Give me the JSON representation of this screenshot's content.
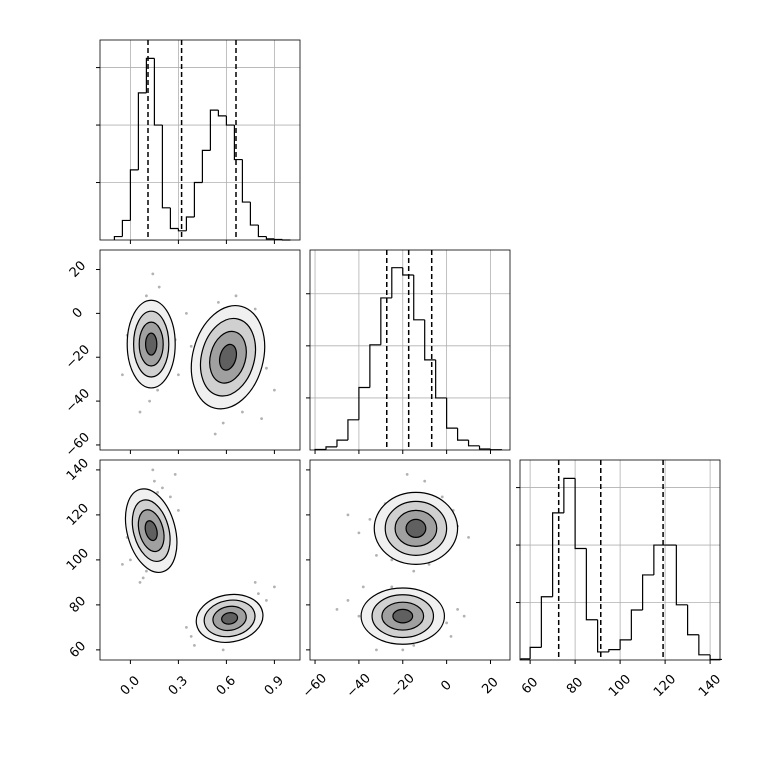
{
  "chart_data": {
    "type": "corner",
    "params": [
      {
        "lim": [
          -0.19,
          1.06
        ],
        "ticks": [
          {
            "value": 0,
            "label": "0.0"
          },
          0.3,
          0.6,
          0.9
        ]
      },
      {
        "lim": [
          -62.3,
          28.9
        ],
        "ticks": [
          {
            "value": -60,
            "label": "−60"
          },
          {
            "value": -40,
            "label": "−40"
          },
          {
            "value": -20,
            "label": "−20"
          },
          0,
          20
        ]
      },
      {
        "lim": [
          55.5,
          144.4
        ],
        "ticks": [
          60,
          80,
          100,
          120,
          140
        ]
      }
    ],
    "histograms": [
      {
        "bins": [
          -0.1,
          -0.05,
          0,
          0.05,
          0.1,
          0.15,
          0.2,
          0.25,
          0.3,
          0.35,
          0.4,
          0.45,
          0.5,
          0.55,
          0.6,
          0.65,
          0.7,
          0.75,
          0.8,
          0.85,
          0.9,
          0.95,
          1.0
        ],
        "counts": [
          30,
          170,
          610,
          1280,
          1580,
          1000,
          280,
          100,
          80,
          200,
          500,
          780,
          1130,
          1080,
          1000,
          700,
          330,
          130,
          30,
          10,
          5,
          0
        ],
        "ylim": [
          0,
          1740
        ],
        "yticks": [
          500,
          1000,
          1500
        ],
        "quantiles": [
          0.11,
          0.32,
          0.66
        ]
      },
      {
        "bins": [
          -60,
          -55,
          -50,
          -45,
          -40,
          -35,
          -30,
          -25,
          -20,
          -15,
          -10,
          -5,
          0,
          5,
          10,
          15,
          20,
          25
        ],
        "counts": [
          5,
          30,
          95,
          290,
          600,
          1010,
          1460,
          1750,
          1680,
          1250,
          865,
          500,
          210,
          95,
          40,
          10,
          3
        ],
        "ylim": [
          0,
          1920
        ],
        "yticks": [
          500,
          1000,
          1500
        ],
        "quantiles": [
          -27.3,
          -17.3,
          -6.8
        ]
      },
      {
        "bins": [
          56,
          60,
          65,
          70,
          75,
          80,
          85,
          90,
          95,
          100,
          105,
          110,
          115,
          120,
          125,
          130,
          135,
          140,
          145
        ],
        "counts": [
          10,
          110,
          550,
          1280,
          1580,
          970,
          350,
          70,
          90,
          175,
          435,
          740,
          1000,
          1000,
          480,
          220,
          45,
          5
        ],
        "ylim": [
          0,
          1740
        ],
        "yticks": [
          500,
          1000,
          1500
        ],
        "quantiles": [
          72.7,
          91.4,
          119.1
        ]
      }
    ],
    "hist_color": "#000000",
    "point_color": "#555555",
    "grid_color": "#b0b0b0",
    "contour_fills": [
      "#f0f0f0",
      "#d0d0d0",
      "#a0a0a0",
      "#606060"
    ],
    "pairs": [
      {
        "x": [
          0.05,
          0.2,
          0.1,
          0.17,
          0.0,
          0.25,
          0.08,
          0.15,
          -0.02,
          0.22,
          0.12,
          0.28,
          0.03,
          0.18,
          -0.05,
          0.1,
          0.2,
          0.06,
          0.14,
          0.3,
          0.45,
          0.75,
          0.55,
          0.8,
          0.4,
          0.7,
          0.62,
          0.5,
          0.85,
          0.58,
          0.38,
          0.9,
          0.66,
          0.48,
          0.72,
          0.6,
          0.35,
          0.82,
          0.53,
          0.78
        ],
        "y": [
          -2,
          -25,
          8,
          -35,
          -20,
          -5,
          -30,
          5,
          -10,
          -18,
          -40,
          -12,
          0,
          12,
          -28,
          -22,
          0,
          -45,
          18,
          -28,
          -10,
          -30,
          5,
          -10,
          -30,
          -45,
          -5,
          -40,
          -25,
          -50,
          -15,
          -35,
          8,
          -25,
          -15,
          -38,
          0,
          -48,
          -55,
          2
        ],
        "contours": [
          [
            {
              "x": 0.13,
              "y": -14,
              "rx": 0.15,
              "ry": 20,
              "angle": 0
            },
            {
              "x": 0.13,
              "y": -14,
              "rx": 0.11,
              "ry": 15,
              "angle": 0
            },
            {
              "x": 0.13,
              "y": -14,
              "rx": 0.075,
              "ry": 10,
              "angle": 0
            },
            {
              "x": 0.13,
              "y": -14,
              "rx": 0.035,
              "ry": 5,
              "angle": 0
            }
          ],
          [
            {
              "x": 0.61,
              "y": -20,
              "rx": 0.22,
              "ry": 24,
              "angle": 15
            },
            {
              "x": 0.61,
              "y": -20,
              "rx": 0.165,
              "ry": 18,
              "angle": 15
            },
            {
              "x": 0.61,
              "y": -20,
              "rx": 0.11,
              "ry": 12,
              "angle": 15
            },
            {
              "x": 0.61,
              "y": -20,
              "rx": 0.05,
              "ry": 6,
              "angle": 15
            }
          ]
        ]
      },
      {
        "x": [
          0.05,
          0.2,
          0.1,
          0.17,
          0.0,
          0.25,
          0.08,
          0.15,
          -0.02,
          0.22,
          0.12,
          0.28,
          0.03,
          0.18,
          -0.05,
          0.1,
          0.2,
          0.06,
          0.14,
          0.3,
          0.45,
          0.75,
          0.55,
          0.8,
          0.4,
          0.7,
          0.62,
          0.5,
          0.85,
          0.58,
          0.38,
          0.9,
          0.66,
          0.48,
          0.72,
          0.6,
          0.35,
          0.82,
          0.53,
          0.78
        ],
        "y": [
          105,
          125,
          95,
          130,
          100,
          128,
          92,
          135,
          110,
          120,
          100,
          138,
          115,
          108,
          98,
          125,
          132,
          90,
          140,
          122,
          68,
          80,
          65,
          85,
          62,
          78,
          70,
          72,
          82,
          60,
          66,
          88,
          83,
          75,
          70,
          64,
          70,
          76,
          80,
          90
        ],
        "contours": [
          [
            {
              "x": 0.13,
              "y": 113,
              "rx": 0.15,
              "ry": 19,
              "angle": -15
            },
            {
              "x": 0.13,
              "y": 113,
              "rx": 0.11,
              "ry": 14,
              "angle": -15
            },
            {
              "x": 0.13,
              "y": 113,
              "rx": 0.075,
              "ry": 9.5,
              "angle": -15
            },
            {
              "x": 0.13,
              "y": 113,
              "rx": 0.035,
              "ry": 4.5,
              "angle": -15
            }
          ],
          [
            {
              "x": 0.62,
              "y": 74,
              "rx": 0.21,
              "ry": 10.5,
              "angle": -10
            },
            {
              "x": 0.62,
              "y": 74,
              "rx": 0.16,
              "ry": 8,
              "angle": -10
            },
            {
              "x": 0.62,
              "y": 74,
              "rx": 0.105,
              "ry": 5.3,
              "angle": -10
            },
            {
              "x": 0.62,
              "y": 74,
              "rx": 0.05,
              "ry": 2.5,
              "angle": -10
            }
          ]
        ]
      },
      {
        "x": [
          -30,
          -5,
          -20,
          0,
          -35,
          -10,
          -25,
          5,
          -15,
          -40,
          -2,
          -28,
          10,
          -18,
          -8,
          -32,
          3,
          -22,
          -12,
          -45,
          -40,
          -5,
          -30,
          0,
          -45,
          -15,
          -25,
          5,
          -35,
          -10,
          -50,
          -20,
          2,
          -28,
          -8,
          -38,
          8,
          -18,
          -32,
          -12
        ],
        "y": [
          110,
          120,
          128,
          105,
          118,
          135,
          100,
          115,
          95,
          112,
          128,
          125,
          110,
          138,
          98,
          102,
          122,
          118,
          108,
          120,
          75,
          80,
          65,
          72,
          82,
          62,
          88,
          78,
          70,
          85,
          78,
          60,
          66,
          80,
          70,
          88,
          75,
          82,
          60,
          74
        ],
        "contours": [
          [
            {
              "x": -14,
              "y": 114,
              "rx": 19,
              "ry": 16,
              "angle": 0
            },
            {
              "x": -14,
              "y": 114,
              "rx": 14,
              "ry": 12,
              "angle": 0
            },
            {
              "x": -14,
              "y": 114,
              "rx": 9.5,
              "ry": 8,
              "angle": 0
            },
            {
              "x": -14,
              "y": 114,
              "rx": 4.5,
              "ry": 4,
              "angle": 0
            }
          ],
          [
            {
              "x": -20,
              "y": 75,
              "rx": 19,
              "ry": 12.5,
              "angle": 0
            },
            {
              "x": -20,
              "y": 75,
              "rx": 14,
              "ry": 9.5,
              "angle": 0
            },
            {
              "x": -20,
              "y": 75,
              "rx": 9.5,
              "ry": 6.2,
              "angle": 0
            },
            {
              "x": -20,
              "y": 75,
              "rx": 4.5,
              "ry": 3,
              "angle": 0
            }
          ]
        ]
      }
    ]
  }
}
